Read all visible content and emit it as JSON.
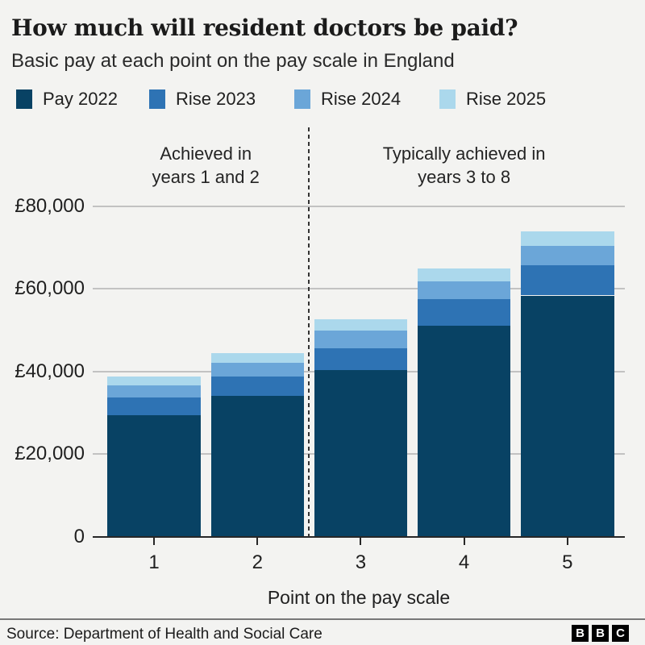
{
  "header": {
    "title": "How much will resident doctors be paid?",
    "subtitle": "Basic pay at each point on the pay scale in England"
  },
  "colors": {
    "background": "#f3f3f1",
    "pay_2022": "#084264",
    "rise_2023": "#2e73b4",
    "rise_2024": "#6ba6d8",
    "rise_2025": "#abd8ec",
    "gridline": "#c2c2c2",
    "axis": "#272727",
    "dashed_divider": "#333333",
    "text": "#1f1f1f"
  },
  "legend": [
    {
      "label": "Pay 2022",
      "color": "#084264"
    },
    {
      "label": "Rise 2023",
      "color": "#2e73b4"
    },
    {
      "label": "Rise 2024",
      "color": "#6ba6d8"
    },
    {
      "label": "Rise 2025",
      "color": "#abd8ec"
    }
  ],
  "chart_data": {
    "type": "bar",
    "stacked": true,
    "title": "How much will resident doctors be paid?",
    "subtitle": "Basic pay at each point on the pay scale in England",
    "categories": [
      "1",
      "2",
      "3",
      "4",
      "5"
    ],
    "series": [
      {
        "name": "Pay 2022",
        "color": "#084264",
        "values": [
          29384,
          34012,
          40257,
          51017,
          58398
        ]
      },
      {
        "name": "Rise 2023",
        "color": "#2e73b4",
        "values": [
          4326,
          4802,
          5445,
          6553,
          7312
        ]
      },
      {
        "name": "Rise 2024",
        "color": "#6ba6d8",
        "values": [
          2906,
          3194,
          4207,
          4255,
          4715
        ]
      },
      {
        "name": "Rise 2025",
        "color": "#abd8ec",
        "values": [
          2215,
          2431,
          2747,
          3223,
          3567
        ]
      }
    ],
    "stack_totals": [
      38831,
      44439,
      52656,
      65048,
      73992
    ],
    "xlabel": "Point on the pay scale",
    "ylabel": "",
    "ylim": [
      0,
      85000
    ],
    "yticks": [
      0,
      20000,
      40000,
      60000,
      80000
    ],
    "ytick_labels": [
      "0",
      "£20,000",
      "£40,000",
      "£60,000",
      "£80,000"
    ],
    "grid": "horizontal",
    "legend_position": "top",
    "annotations": [
      {
        "lines": [
          "Achieved in",
          "years 1 and 2"
        ],
        "over_categories": [
          "1",
          "2"
        ]
      },
      {
        "lines": [
          "Typically achieved in",
          "years 3 to 8"
        ],
        "over_categories": [
          "3",
          "4",
          "5"
        ]
      }
    ],
    "divider": {
      "style": "dashed-vertical",
      "between_categories": [
        "2",
        "3"
      ]
    }
  },
  "footer": {
    "source": "Source: Department of Health and Social Care",
    "logo_letters": [
      "B",
      "B",
      "C"
    ]
  }
}
